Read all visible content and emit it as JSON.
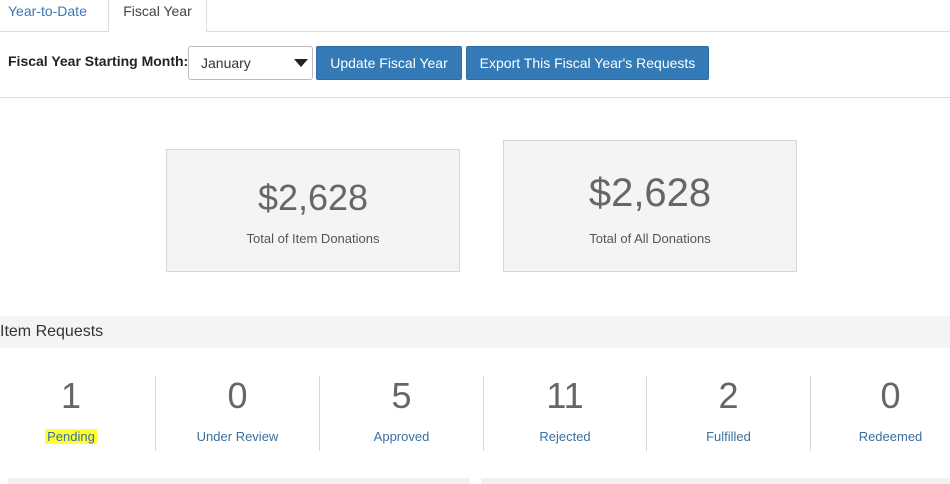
{
  "tabs": [
    {
      "label": "Year-to-Date"
    },
    {
      "label": "Fiscal Year"
    }
  ],
  "toolbar": {
    "fiscal_label": "Fiscal Year Starting Month:",
    "month_value": "January",
    "update_button": "Update Fiscal Year",
    "export_button": "Export This Fiscal Year's Requests"
  },
  "totals": {
    "item": {
      "amount": "$2,628",
      "label": "Total of Item Donations"
    },
    "all": {
      "amount": "$2,628",
      "label": "Total of All Donations"
    }
  },
  "item_requests": {
    "title": "Item Requests",
    "stats": [
      {
        "count": "1",
        "label": "Pending"
      },
      {
        "count": "0",
        "label": "Under Review"
      },
      {
        "count": "5",
        "label": "Approved"
      },
      {
        "count": "11",
        "label": "Rejected"
      },
      {
        "count": "2",
        "label": "Fulfilled"
      },
      {
        "count": "0",
        "label": "Redeemed"
      }
    ]
  },
  "colors": {
    "primary_button": "#337ab7",
    "link": "#3a6f9e",
    "highlight": "#ffff33"
  }
}
